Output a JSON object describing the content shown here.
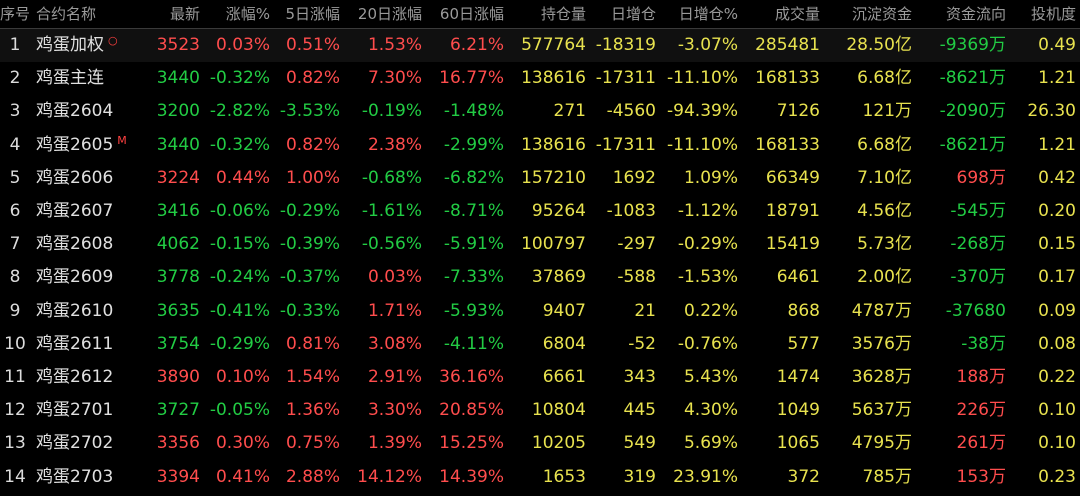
{
  "header": {
    "seq": "序号",
    "name": "合约名称",
    "last": "最新",
    "chg_pct": "涨幅%",
    "chg5": "5日涨幅",
    "chg20": "20日涨幅",
    "chg60": "60日涨幅",
    "oi": "持仓量",
    "oi_chg": "日增仓",
    "oi_chg_pct": "日增仓%",
    "volume": "成交量",
    "settle_funds": "沉淀资金",
    "fund_flow": "资金流向",
    "speculation": "投机度"
  },
  "colors": {
    "up": "#ff4d4d",
    "down": "#22cc44",
    "neutral": "#e8e24f",
    "header": "#9a9a9a",
    "background": "#000000"
  },
  "rows": [
    {
      "seq": "1",
      "name": "鸡蛋加权",
      "tag": "○",
      "last": "3523",
      "chg_pct": "0.03%",
      "chg5": "0.51%",
      "chg20": "1.53%",
      "chg60": "6.21%",
      "oi": "577764",
      "oi_chg": "-18319",
      "oi_chg_pct": "-3.07%",
      "volume": "285481",
      "settle_funds": "28.50亿",
      "fund_flow": "-9369万",
      "speculation": "0.49",
      "dir": {
        "last": "up",
        "chg_pct": "up",
        "chg5": "up",
        "chg20": "up",
        "chg60": "up",
        "fund_flow": "down"
      }
    },
    {
      "seq": "2",
      "name": "鸡蛋主连",
      "tag": "",
      "last": "3440",
      "chg_pct": "-0.32%",
      "chg5": "0.82%",
      "chg20": "7.30%",
      "chg60": "16.77%",
      "oi": "138616",
      "oi_chg": "-17311",
      "oi_chg_pct": "-11.10%",
      "volume": "168133",
      "settle_funds": "6.68亿",
      "fund_flow": "-8621万",
      "speculation": "1.21",
      "dir": {
        "last": "down",
        "chg_pct": "down",
        "chg5": "up",
        "chg20": "up",
        "chg60": "up",
        "fund_flow": "down"
      }
    },
    {
      "seq": "3",
      "name": "鸡蛋2604",
      "tag": "",
      "last": "3200",
      "chg_pct": "-2.82%",
      "chg5": "-3.53%",
      "chg20": "-0.19%",
      "chg60": "-1.48%",
      "oi": "271",
      "oi_chg": "-4560",
      "oi_chg_pct": "-94.39%",
      "volume": "7126",
      "settle_funds": "121万",
      "fund_flow": "-2090万",
      "speculation": "26.30",
      "dir": {
        "last": "down",
        "chg_pct": "down",
        "chg5": "down",
        "chg20": "down",
        "chg60": "down",
        "fund_flow": "down"
      }
    },
    {
      "seq": "4",
      "name": "鸡蛋2605",
      "tag": "M",
      "last": "3440",
      "chg_pct": "-0.32%",
      "chg5": "0.82%",
      "chg20": "2.38%",
      "chg60": "-2.99%",
      "oi": "138616",
      "oi_chg": "-17311",
      "oi_chg_pct": "-11.10%",
      "volume": "168133",
      "settle_funds": "6.68亿",
      "fund_flow": "-8621万",
      "speculation": "1.21",
      "dir": {
        "last": "down",
        "chg_pct": "down",
        "chg5": "up",
        "chg20": "up",
        "chg60": "down",
        "fund_flow": "down"
      }
    },
    {
      "seq": "5",
      "name": "鸡蛋2606",
      "tag": "",
      "last": "3224",
      "chg_pct": "0.44%",
      "chg5": "1.00%",
      "chg20": "-0.68%",
      "chg60": "-6.82%",
      "oi": "157210",
      "oi_chg": "1692",
      "oi_chg_pct": "1.09%",
      "volume": "66349",
      "settle_funds": "7.10亿",
      "fund_flow": "698万",
      "speculation": "0.42",
      "dir": {
        "last": "up",
        "chg_pct": "up",
        "chg5": "up",
        "chg20": "down",
        "chg60": "down",
        "fund_flow": "up"
      }
    },
    {
      "seq": "6",
      "name": "鸡蛋2607",
      "tag": "",
      "last": "3416",
      "chg_pct": "-0.06%",
      "chg5": "-0.29%",
      "chg20": "-1.61%",
      "chg60": "-8.71%",
      "oi": "95264",
      "oi_chg": "-1083",
      "oi_chg_pct": "-1.12%",
      "volume": "18791",
      "settle_funds": "4.56亿",
      "fund_flow": "-545万",
      "speculation": "0.20",
      "dir": {
        "last": "down",
        "chg_pct": "down",
        "chg5": "down",
        "chg20": "down",
        "chg60": "down",
        "fund_flow": "down"
      }
    },
    {
      "seq": "7",
      "name": "鸡蛋2608",
      "tag": "",
      "last": "4062",
      "chg_pct": "-0.15%",
      "chg5": "-0.39%",
      "chg20": "-0.56%",
      "chg60": "-5.91%",
      "oi": "100797",
      "oi_chg": "-297",
      "oi_chg_pct": "-0.29%",
      "volume": "15419",
      "settle_funds": "5.73亿",
      "fund_flow": "-268万",
      "speculation": "0.15",
      "dir": {
        "last": "down",
        "chg_pct": "down",
        "chg5": "down",
        "chg20": "down",
        "chg60": "down",
        "fund_flow": "down"
      }
    },
    {
      "seq": "8",
      "name": "鸡蛋2609",
      "tag": "",
      "last": "3778",
      "chg_pct": "-0.24%",
      "chg5": "-0.37%",
      "chg20": "0.03%",
      "chg60": "-7.33%",
      "oi": "37869",
      "oi_chg": "-588",
      "oi_chg_pct": "-1.53%",
      "volume": "6461",
      "settle_funds": "2.00亿",
      "fund_flow": "-370万",
      "speculation": "0.17",
      "dir": {
        "last": "down",
        "chg_pct": "down",
        "chg5": "down",
        "chg20": "up",
        "chg60": "down",
        "fund_flow": "down"
      }
    },
    {
      "seq": "9",
      "name": "鸡蛋2610",
      "tag": "",
      "last": "3635",
      "chg_pct": "-0.41%",
      "chg5": "-0.33%",
      "chg20": "1.71%",
      "chg60": "-5.93%",
      "oi": "9407",
      "oi_chg": "21",
      "oi_chg_pct": "0.22%",
      "volume": "868",
      "settle_funds": "4787万",
      "fund_flow": "-37680",
      "speculation": "0.09",
      "dir": {
        "last": "down",
        "chg_pct": "down",
        "chg5": "down",
        "chg20": "up",
        "chg60": "down",
        "fund_flow": "down"
      }
    },
    {
      "seq": "10",
      "name": "鸡蛋2611",
      "tag": "",
      "last": "3754",
      "chg_pct": "-0.29%",
      "chg5": "0.81%",
      "chg20": "3.08%",
      "chg60": "-4.11%",
      "oi": "6804",
      "oi_chg": "-52",
      "oi_chg_pct": "-0.76%",
      "volume": "577",
      "settle_funds": "3576万",
      "fund_flow": "-38万",
      "speculation": "0.08",
      "dir": {
        "last": "down",
        "chg_pct": "down",
        "chg5": "up",
        "chg20": "up",
        "chg60": "down",
        "fund_flow": "down"
      }
    },
    {
      "seq": "11",
      "name": "鸡蛋2612",
      "tag": "",
      "last": "3890",
      "chg_pct": "0.10%",
      "chg5": "1.54%",
      "chg20": "2.91%",
      "chg60": "36.16%",
      "oi": "6661",
      "oi_chg": "343",
      "oi_chg_pct": "5.43%",
      "volume": "1474",
      "settle_funds": "3628万",
      "fund_flow": "188万",
      "speculation": "0.22",
      "dir": {
        "last": "up",
        "chg_pct": "up",
        "chg5": "up",
        "chg20": "up",
        "chg60": "up",
        "fund_flow": "up"
      }
    },
    {
      "seq": "12",
      "name": "鸡蛋2701",
      "tag": "",
      "last": "3727",
      "chg_pct": "-0.05%",
      "chg5": "1.36%",
      "chg20": "3.30%",
      "chg60": "20.85%",
      "oi": "10804",
      "oi_chg": "445",
      "oi_chg_pct": "4.30%",
      "volume": "1049",
      "settle_funds": "5637万",
      "fund_flow": "226万",
      "speculation": "0.10",
      "dir": {
        "last": "down",
        "chg_pct": "down",
        "chg5": "up",
        "chg20": "up",
        "chg60": "up",
        "fund_flow": "up"
      }
    },
    {
      "seq": "13",
      "name": "鸡蛋2702",
      "tag": "",
      "last": "3356",
      "chg_pct": "0.30%",
      "chg5": "0.75%",
      "chg20": "1.39%",
      "chg60": "15.25%",
      "oi": "10205",
      "oi_chg": "549",
      "oi_chg_pct": "5.69%",
      "volume": "1065",
      "settle_funds": "4795万",
      "fund_flow": "261万",
      "speculation": "0.10",
      "dir": {
        "last": "up",
        "chg_pct": "up",
        "chg5": "up",
        "chg20": "up",
        "chg60": "up",
        "fund_flow": "up"
      }
    },
    {
      "seq": "14",
      "name": "鸡蛋2703",
      "tag": "",
      "last": "3394",
      "chg_pct": "0.41%",
      "chg5": "2.88%",
      "chg20": "14.12%",
      "chg60": "14.39%",
      "oi": "1653",
      "oi_chg": "319",
      "oi_chg_pct": "23.91%",
      "volume": "372",
      "settle_funds": "785万",
      "fund_flow": "153万",
      "speculation": "0.23",
      "dir": {
        "last": "up",
        "chg_pct": "up",
        "chg5": "up",
        "chg20": "up",
        "chg60": "up",
        "fund_flow": "up"
      }
    }
  ]
}
